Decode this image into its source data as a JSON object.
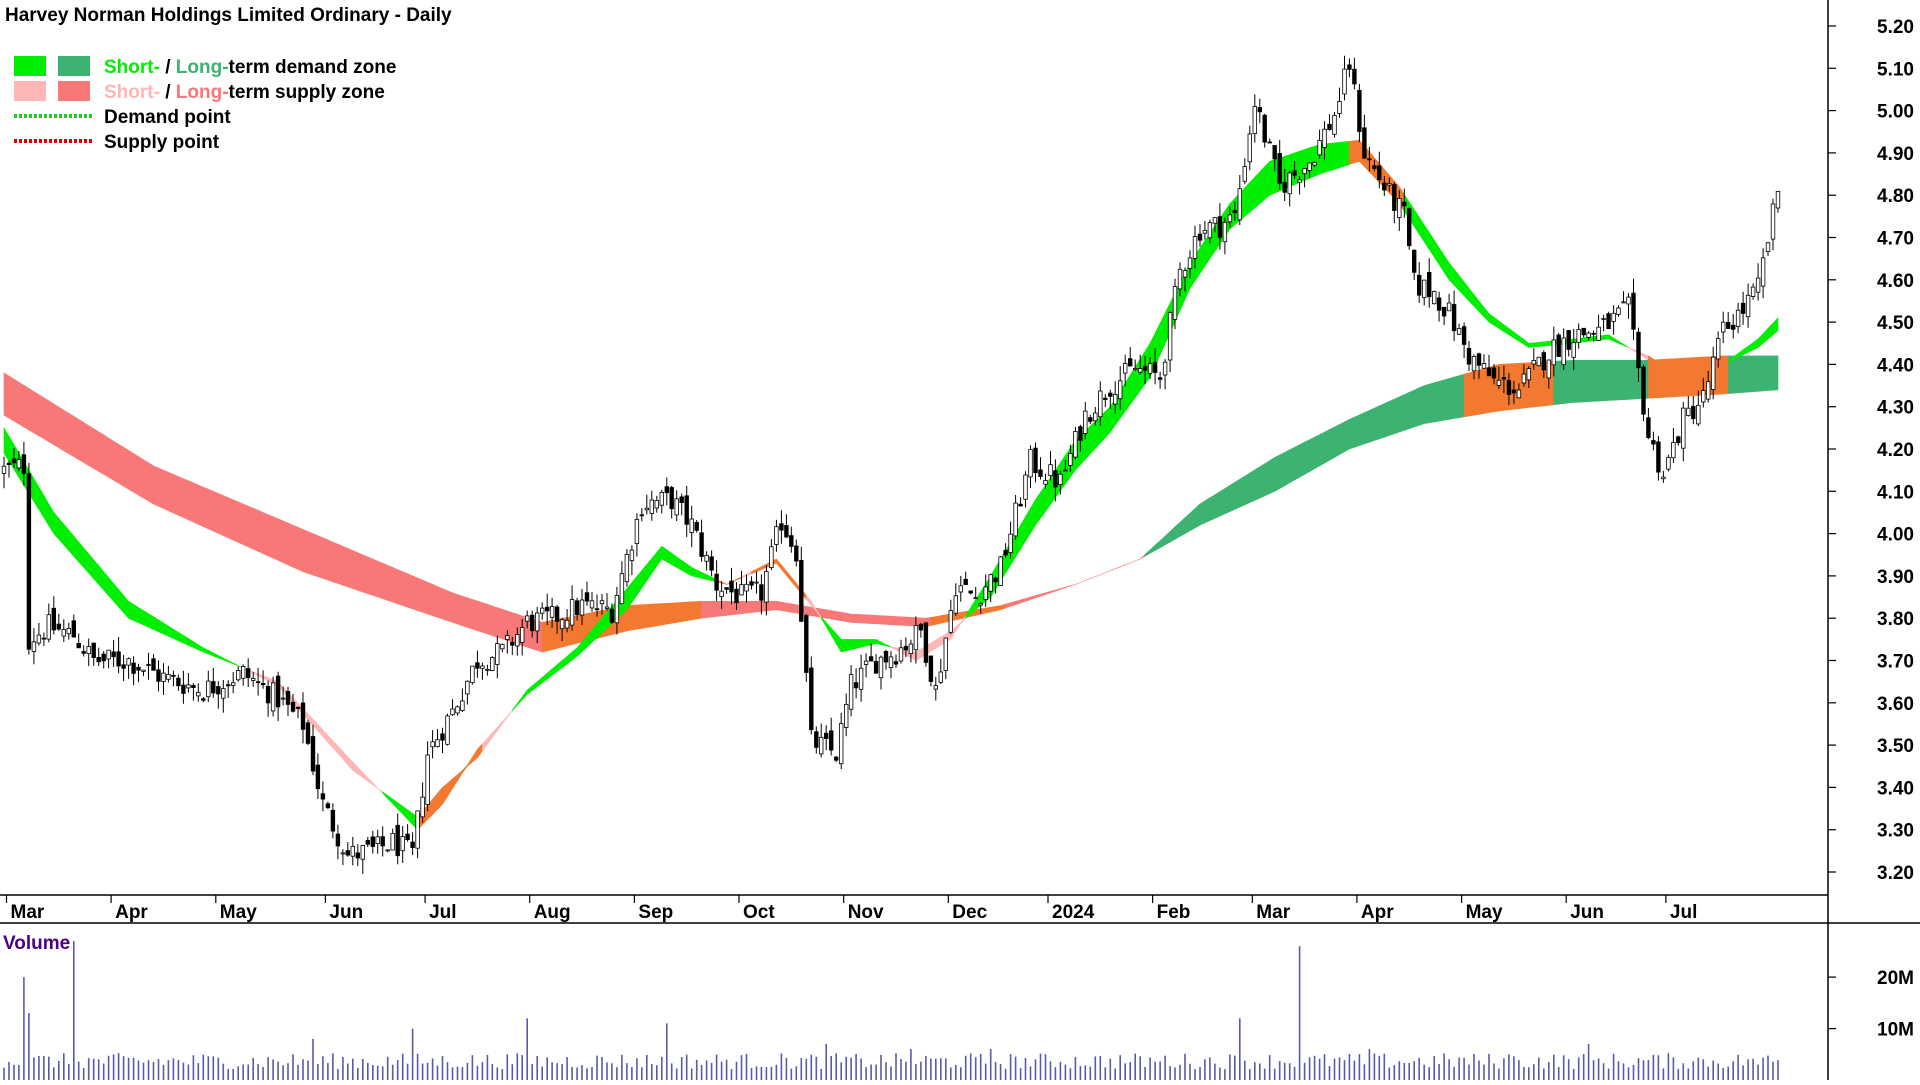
{
  "title": "Harvey Norman Holdings Limited Ordinary - Daily",
  "legend": {
    "items": [
      {
        "short_label": "Short-",
        "sep": " / ",
        "long_label": "Long-",
        "rest": "term demand zone",
        "short_color": "#00ee00",
        "long_color": "#3cb371",
        "kind": "zone"
      },
      {
        "short_label": "Short-",
        "sep": " / ",
        "long_label": "Long-",
        "rest": "term supply zone",
        "short_color": "#ffb6b6",
        "long_color": "#f87878",
        "kind": "zone"
      },
      {
        "label": "Demand point",
        "color": "#22cc22",
        "kind": "point"
      },
      {
        "label": "Supply point",
        "color": "#dd0000",
        "kind": "point"
      }
    ]
  },
  "volume_label": "Volume",
  "colors": {
    "demand_short": "#00ee00",
    "demand_long": "#3cb371",
    "supply_short": "#ffb6b6",
    "supply_long": "#f87878",
    "overlap": "#f47930",
    "volume": "#5a5aa8",
    "axis": "#000000"
  },
  "chart_data": [
    {
      "type": "candlestick",
      "title": "Harvey Norman Holdings Limited Ordinary - Daily",
      "y_ticks": [
        "3.20",
        "3.30",
        "3.40",
        "3.50",
        "3.60",
        "3.70",
        "3.80",
        "3.90",
        "4.00",
        "4.10",
        "4.20",
        "4.30",
        "4.40",
        "4.50",
        "4.60",
        "4.70",
        "4.80",
        "4.90",
        "5.00",
        "5.10",
        "5.20"
      ],
      "ylim": [
        3.15,
        5.25
      ],
      "x_ticks": [
        "Mar",
        "Apr",
        "May",
        "Jun",
        "Jul",
        "Aug",
        "Sep",
        "Oct",
        "Nov",
        "Dec",
        "2024",
        "Feb",
        "Mar",
        "Apr",
        "May",
        "Jun",
        "Jul"
      ],
      "x_tick_pos": [
        0.5,
        21.5,
        42.5,
        64.5,
        84.5,
        105.5,
        126.5,
        147.5,
        168.5,
        189.5,
        209.5,
        230.5,
        250.5,
        271.5,
        292.5,
        313.5,
        333.5
      ],
      "n_days": 357,
      "price_anchors": [
        [
          0,
          4.15
        ],
        [
          4,
          4.16
        ],
        [
          5,
          3.75
        ],
        [
          9,
          3.78
        ],
        [
          14,
          3.76
        ],
        [
          18,
          3.7
        ],
        [
          25,
          3.7
        ],
        [
          32,
          3.66
        ],
        [
          40,
          3.63
        ],
        [
          48,
          3.67
        ],
        [
          55,
          3.61
        ],
        [
          60,
          3.55
        ],
        [
          64,
          3.36
        ],
        [
          69,
          3.24
        ],
        [
          74,
          3.25
        ],
        [
          78,
          3.27
        ],
        [
          82,
          3.24
        ],
        [
          85,
          3.48
        ],
        [
          90,
          3.58
        ],
        [
          95,
          3.7
        ],
        [
          100,
          3.72
        ],
        [
          105,
          3.79
        ],
        [
          110,
          3.8
        ],
        [
          116,
          3.83
        ],
        [
          122,
          3.82
        ],
        [
          128,
          4.07
        ],
        [
          134,
          4.08
        ],
        [
          138,
          4.02
        ],
        [
          143,
          3.88
        ],
        [
          148,
          3.85
        ],
        [
          152,
          3.86
        ],
        [
          156,
          4.03
        ],
        [
          159,
          3.96
        ],
        [
          162,
          3.51
        ],
        [
          167,
          3.48
        ],
        [
          170,
          3.64
        ],
        [
          175,
          3.7
        ],
        [
          179,
          3.72
        ],
        [
          184,
          3.77
        ],
        [
          187,
          3.63
        ],
        [
          191,
          3.88
        ],
        [
          195,
          3.85
        ],
        [
          200,
          3.92
        ],
        [
          206,
          4.17
        ],
        [
          212,
          4.12
        ],
        [
          217,
          4.28
        ],
        [
          222,
          4.35
        ],
        [
          227,
          4.39
        ],
        [
          232,
          4.37
        ],
        [
          236,
          4.62
        ],
        [
          240,
          4.72
        ],
        [
          244,
          4.73
        ],
        [
          247,
          4.75
        ],
        [
          251,
          5.02
        ],
        [
          256,
          4.82
        ],
        [
          262,
          4.88
        ],
        [
          267,
          4.99
        ],
        [
          270,
          5.11
        ],
        [
          273,
          4.9
        ],
        [
          278,
          4.8
        ],
        [
          281,
          4.75
        ],
        [
          283,
          4.59
        ],
        [
          287,
          4.57
        ],
        [
          290,
          4.52
        ],
        [
          294,
          4.42
        ],
        [
          299,
          4.36
        ],
        [
          304,
          4.34
        ],
        [
          310,
          4.43
        ],
        [
          315,
          4.47
        ],
        [
          320,
          4.48
        ],
        [
          326,
          4.53
        ],
        [
          330,
          4.23
        ],
        [
          333,
          4.14
        ],
        [
          337,
          4.27
        ],
        [
          341,
          4.32
        ],
        [
          345,
          4.48
        ],
        [
          349,
          4.53
        ],
        [
          352,
          4.58
        ],
        [
          356,
          4.81
        ]
      ],
      "short_band_anchors": [
        [
          0,
          4.19,
          4.25
        ],
        [
          10,
          4.0,
          4.05
        ],
        [
          25,
          3.8,
          3.84
        ],
        [
          40,
          3.72,
          3.73
        ],
        [
          55,
          3.65,
          3.64
        ],
        [
          70,
          3.46,
          3.44
        ],
        [
          83,
          3.3,
          3.33
        ],
        [
          88,
          3.36,
          3.4
        ],
        [
          95,
          3.49,
          3.47
        ],
        [
          105,
          3.62,
          3.63
        ],
        [
          115,
          3.71,
          3.73
        ],
        [
          125,
          3.82,
          3.87
        ],
        [
          132,
          3.94,
          3.97
        ],
        [
          138,
          3.9,
          3.92
        ],
        [
          145,
          3.88,
          3.88
        ],
        [
          155,
          3.94,
          3.93
        ],
        [
          162,
          3.84,
          3.83
        ],
        [
          168,
          3.72,
          3.75
        ],
        [
          175,
          3.74,
          3.75
        ],
        [
          183,
          3.72,
          3.7
        ],
        [
          190,
          3.77,
          3.75
        ],
        [
          198,
          3.85,
          3.9
        ],
        [
          207,
          4.02,
          4.08
        ],
        [
          215,
          4.15,
          4.22
        ],
        [
          222,
          4.24,
          4.3
        ],
        [
          230,
          4.37,
          4.45
        ],
        [
          238,
          4.58,
          4.64
        ],
        [
          246,
          4.72,
          4.78
        ],
        [
          254,
          4.8,
          4.88
        ],
        [
          264,
          4.85,
          4.92
        ],
        [
          272,
          4.88,
          4.93
        ],
        [
          280,
          4.78,
          4.82
        ],
        [
          290,
          4.6,
          4.64
        ],
        [
          298,
          4.5,
          4.52
        ],
        [
          306,
          4.44,
          4.45
        ],
        [
          315,
          4.45,
          4.46
        ],
        [
          322,
          4.46,
          4.47
        ],
        [
          330,
          4.42,
          4.41
        ],
        [
          338,
          4.36,
          4.38
        ],
        [
          345,
          4.4,
          4.4
        ],
        [
          352,
          4.44,
          4.46
        ],
        [
          356,
          4.48,
          4.51
        ]
      ],
      "long_band_anchors": [
        [
          0,
          4.38,
          4.28
        ],
        [
          30,
          4.16,
          4.07
        ],
        [
          60,
          4.01,
          3.91
        ],
        [
          90,
          3.86,
          3.79
        ],
        [
          108,
          3.79,
          3.72
        ],
        [
          125,
          3.83,
          3.77
        ],
        [
          140,
          3.84,
          3.8
        ],
        [
          155,
          3.84,
          3.82
        ],
        [
          170,
          3.81,
          3.79
        ],
        [
          185,
          3.8,
          3.78
        ],
        [
          200,
          3.83,
          3.82
        ],
        [
          215,
          3.88,
          3.88
        ],
        [
          228,
          3.94,
          3.94
        ],
        [
          240,
          4.02,
          4.07
        ],
        [
          255,
          4.1,
          4.18
        ],
        [
          270,
          4.2,
          4.27
        ],
        [
          285,
          4.26,
          4.35
        ],
        [
          300,
          4.29,
          4.4
        ],
        [
          315,
          4.31,
          4.41
        ],
        [
          330,
          4.32,
          4.41
        ],
        [
          345,
          4.33,
          4.42
        ],
        [
          356,
          4.34,
          4.42
        ]
      ],
      "volume_y_ticks": [
        "10M",
        "20M"
      ],
      "volume_ylim": [
        0,
        28
      ],
      "volume_spikes": [
        [
          4,
          20
        ],
        [
          5,
          13
        ],
        [
          14,
          27
        ],
        [
          62,
          8
        ],
        [
          82,
          10
        ],
        [
          105,
          12
        ],
        [
          133,
          11
        ],
        [
          165,
          7
        ],
        [
          182,
          6
        ],
        [
          198,
          6
        ],
        [
          248,
          12
        ],
        [
          260,
          26
        ],
        [
          274,
          6
        ],
        [
          302,
          5
        ],
        [
          318,
          7
        ],
        [
          350,
          4
        ]
      ],
      "volume_base": 3.5
    }
  ]
}
